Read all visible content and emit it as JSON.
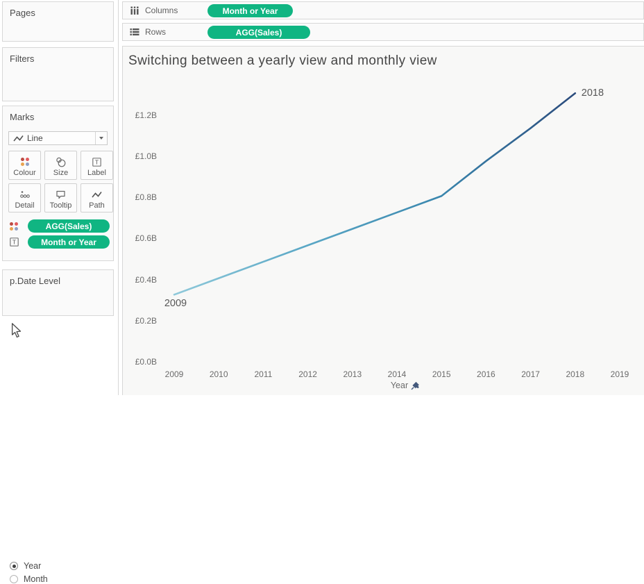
{
  "colors": {
    "pill-green": "#10b582",
    "card-border": "#d7d7d7",
    "card-bg": "#fafafa",
    "worksheet-bg": "#f8f8f7",
    "pin-blue": "#44597c"
  },
  "icons": {
    "colour_dots": [
      "#bc4b42",
      "#e25b5e",
      "#e9a351",
      "#8e9fc4"
    ]
  },
  "shelves": {
    "columns_label": "Columns",
    "columns_pill": "Month or Year",
    "rows_label": "Rows",
    "rows_pill": "AGG(Sales)"
  },
  "sidebar": {
    "pages_title": "Pages",
    "filters_title": "Filters",
    "marks": {
      "title": "Marks",
      "mark_type": "Line",
      "buttons": [
        {
          "label": "Colour"
        },
        {
          "label": "Size"
        },
        {
          "label": "Label"
        },
        {
          "label": "Detail"
        },
        {
          "label": "Tooltip"
        },
        {
          "label": "Path"
        }
      ],
      "pills": [
        {
          "label": "AGG(Sales)"
        },
        {
          "label": "Month or Year"
        }
      ]
    },
    "parameter": {
      "title": "p.Date Level",
      "options": [
        {
          "label": "Year",
          "selected": true
        },
        {
          "label": "Month",
          "selected": false
        }
      ]
    }
  },
  "chart_data": {
    "type": "line",
    "title": "Switching between a yearly view and monthly view",
    "xlabel": "Year",
    "ylabel": "",
    "series_name": "AGG(Sales)",
    "x": [
      2009,
      2010,
      2011,
      2012,
      2013,
      2014,
      2015,
      2016,
      2017,
      2018
    ],
    "values": [
      0.33,
      0.41,
      0.49,
      0.57,
      0.65,
      0.73,
      0.81,
      0.98,
      1.14,
      1.31
    ],
    "units": "billions GBP",
    "x_ticks": [
      2009,
      2010,
      2011,
      2012,
      2013,
      2014,
      2015,
      2016,
      2017,
      2018,
      2019
    ],
    "y_ticks": [
      0.0,
      0.2,
      0.4,
      0.6,
      0.8,
      1.0,
      1.2
    ],
    "y_tick_prefix": "£",
    "y_tick_suffix": "B",
    "xlim": [
      2009,
      2019
    ],
    "ylim": [
      0.0,
      1.35
    ],
    "grid": false,
    "legend": "none",
    "point_labels": [
      {
        "text": "2009",
        "year": 2009,
        "position": "below"
      },
      {
        "text": "2018",
        "year": 2018,
        "position": "right"
      }
    ],
    "line_gradient": [
      "#8fc9da",
      "#5ba8c6",
      "#3a87ae",
      "#2b4b7c"
    ]
  }
}
